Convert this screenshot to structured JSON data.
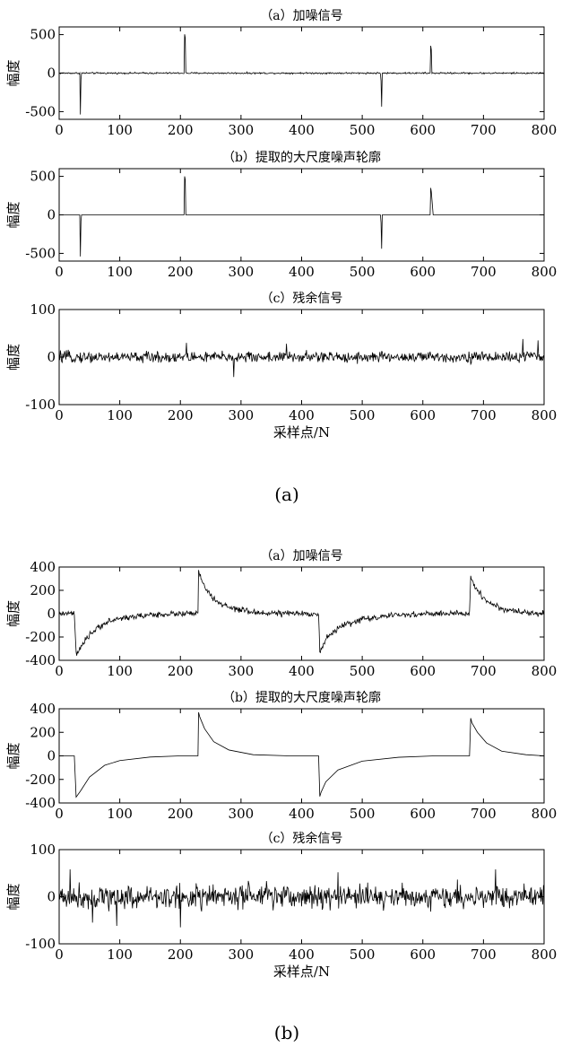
{
  "chart_data": [
    {
      "type": "line",
      "group": "a",
      "title": "（a）加噪信号",
      "ylabel": "幅度",
      "xlabel": "",
      "xlim": [
        0,
        800
      ],
      "ylim": [
        -600,
        600
      ],
      "xticks": [
        0,
        100,
        200,
        300,
        400,
        500,
        600,
        700,
        800
      ],
      "yticks": [
        -500,
        0,
        500
      ],
      "series": [
        {
          "x": [
            0,
            34,
            35,
            36,
            37,
            38,
            206,
            207,
            208,
            209,
            530,
            531,
            532,
            533,
            534,
            612,
            613,
            614,
            615,
            616,
            800
          ],
          "y": [
            0,
            0,
            -540,
            -80,
            0,
            0,
            0,
            500,
            460,
            0,
            0,
            -100,
            -440,
            0,
            0,
            0,
            350,
            300,
            0,
            0,
            0
          ]
        }
      ],
      "noise_amplitude": 9
    },
    {
      "type": "line",
      "group": "a",
      "title": "（b）提取的大尺度噪声轮廓",
      "ylabel": "幅度",
      "xlabel": "",
      "xlim": [
        0,
        800
      ],
      "ylim": [
        -600,
        600
      ],
      "xticks": [
        0,
        100,
        200,
        300,
        400,
        500,
        600,
        700,
        800
      ],
      "yticks": [
        -500,
        0,
        500
      ],
      "series": [
        {
          "x": [
            0,
            34,
            35,
            36,
            37,
            38,
            206,
            207,
            208,
            209,
            530,
            531,
            532,
            533,
            534,
            612,
            613,
            614,
            615,
            616,
            617,
            618,
            800
          ],
          "y": [
            0,
            0,
            -540,
            -80,
            0,
            0,
            0,
            500,
            460,
            0,
            0,
            -100,
            -440,
            0,
            0,
            0,
            350,
            300,
            200,
            100,
            0,
            0,
            0
          ]
        }
      ],
      "noise_amplitude": 0
    },
    {
      "type": "line",
      "group": "a",
      "title": "（c）残余信号",
      "ylabel": "幅度",
      "xlabel": "采样点/N",
      "xlim": [
        0,
        800
      ],
      "ylim": [
        -100,
        100
      ],
      "xticks": [
        0,
        100,
        200,
        300,
        400,
        500,
        600,
        700,
        800
      ],
      "yticks": [
        -100,
        0,
        100
      ],
      "series": [
        {
          "x": [
            0,
            800
          ],
          "y": [
            0,
            0
          ]
        }
      ],
      "noise_amplitude": 10,
      "spikes": [
        [
          210,
          30
        ],
        [
          288,
          -42
        ],
        [
          375,
          28
        ],
        [
          765,
          38
        ],
        [
          790,
          35
        ]
      ]
    },
    {
      "type": "line",
      "group": "b",
      "title": "（a）加噪信号",
      "ylabel": "幅度",
      "xlabel": "",
      "xlim": [
        0,
        800
      ],
      "ylim": [
        -400,
        400
      ],
      "xticks": [
        0,
        100,
        200,
        300,
        400,
        500,
        600,
        700,
        800
      ],
      "yticks": [
        -400,
        -200,
        0,
        200,
        400
      ],
      "series": [
        {
          "x": [
            0,
            25,
            28,
            35,
            50,
            75,
            100,
            150,
            200,
            229,
            230,
            232,
            240,
            255,
            280,
            320,
            380,
            428,
            430,
            432,
            440,
            460,
            500,
            560,
            620,
            677,
            679,
            681,
            690,
            705,
            730,
            770,
            800
          ],
          "y": [
            0,
            0,
            -350,
            -300,
            -180,
            -80,
            -40,
            -10,
            0,
            0,
            360,
            330,
            230,
            120,
            50,
            10,
            0,
            0,
            -340,
            -310,
            -220,
            -120,
            -45,
            -12,
            0,
            0,
            310,
            280,
            200,
            110,
            40,
            10,
            0
          ]
        }
      ],
      "noise_amplitude": 22
    },
    {
      "type": "line",
      "group": "b",
      "title": "（b）提取的大尺度噪声轮廓",
      "ylabel": "幅度",
      "xlabel": "",
      "xlim": [
        0,
        800
      ],
      "ylim": [
        -400,
        400
      ],
      "xticks": [
        0,
        100,
        200,
        300,
        400,
        500,
        600,
        700,
        800
      ],
      "yticks": [
        -400,
        -200,
        0,
        200,
        400
      ],
      "series": [
        {
          "x": [
            0,
            25,
            28,
            35,
            50,
            75,
            100,
            150,
            200,
            229,
            230,
            232,
            240,
            255,
            280,
            320,
            380,
            428,
            430,
            432,
            440,
            460,
            500,
            560,
            620,
            677,
            679,
            681,
            690,
            705,
            730,
            770,
            800
          ],
          "y": [
            0,
            0,
            -350,
            -300,
            -180,
            -80,
            -40,
            -10,
            0,
            0,
            370,
            330,
            230,
            120,
            50,
            10,
            0,
            0,
            -345,
            -310,
            -220,
            -120,
            -45,
            -12,
            0,
            0,
            320,
            280,
            200,
            110,
            40,
            10,
            0
          ]
        }
      ],
      "noise_amplitude": 0
    },
    {
      "type": "line",
      "group": "b",
      "title": "（c）残余信号",
      "ylabel": "幅度",
      "xlabel": "采样点/N",
      "xlim": [
        0,
        800
      ],
      "ylim": [
        -100,
        100
      ],
      "xticks": [
        0,
        100,
        200,
        300,
        400,
        500,
        600,
        700,
        800
      ],
      "yticks": [
        -100,
        0,
        100
      ],
      "series": [
        {
          "x": [
            0,
            800
          ],
          "y": [
            0,
            0
          ]
        }
      ],
      "noise_amplitude": 22,
      "spikes": [
        [
          18,
          58
        ],
        [
          55,
          -55
        ],
        [
          95,
          -62
        ],
        [
          200,
          -65
        ],
        [
          460,
          52
        ],
        [
          720,
          58
        ]
      ]
    }
  ],
  "captions": {
    "a": "(a)",
    "b": "(b)"
  },
  "colors": {
    "line": "#000000",
    "axis": "#000000",
    "background": "#ffffff"
  }
}
